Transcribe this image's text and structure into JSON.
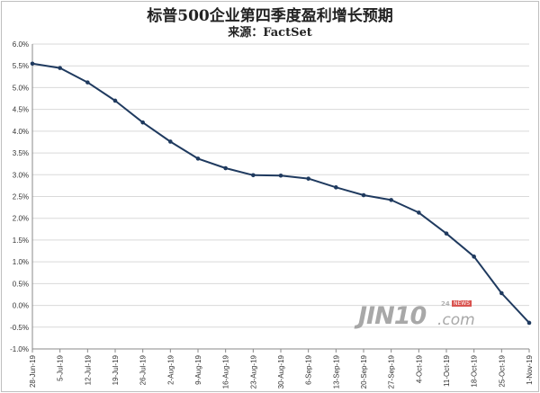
{
  "header": {
    "title": "标普500企业第四季度盈利增长预期",
    "subtitle": "来源：FactSet"
  },
  "watermark": {
    "main": "JIN10",
    "com": ".com",
    "sub": "24",
    "badge": "NEWS"
  },
  "colors": {
    "line": "#1f3a5f",
    "grid": "#d9d9d9",
    "axis": "#888888"
  },
  "chart_data": {
    "type": "line",
    "title": "标普500企业第四季度盈利增长预期",
    "subtitle": "来源：FactSet",
    "xlabel": "",
    "ylabel": "",
    "ylim": [
      -1.0,
      6.0
    ],
    "y_step": 0.5,
    "y_tick_format": "percent_1dp",
    "grid": true,
    "legend": "none",
    "categories": [
      "28-Jun-19",
      "5-Jul-19",
      "12-Jul-19",
      "19-Jul-19",
      "26-Jul-19",
      "2-Aug-19",
      "9-Aug-19",
      "16-Aug-19",
      "23-Aug-19",
      "30-Aug-19",
      "6-Sep-19",
      "13-Sep-19",
      "20-Sep-19",
      "27-Sep-19",
      "4-Oct-19",
      "11-Oct-19",
      "18-Oct-19",
      "25-Oct-19",
      "1-Nov-19"
    ],
    "series": [
      {
        "values": [
          5.55,
          5.45,
          5.12,
          4.7,
          4.2,
          3.76,
          3.37,
          3.15,
          2.99,
          2.98,
          2.91,
          2.71,
          2.53,
          2.42,
          2.13,
          1.65,
          1.12,
          0.28,
          -0.4
        ]
      }
    ]
  }
}
